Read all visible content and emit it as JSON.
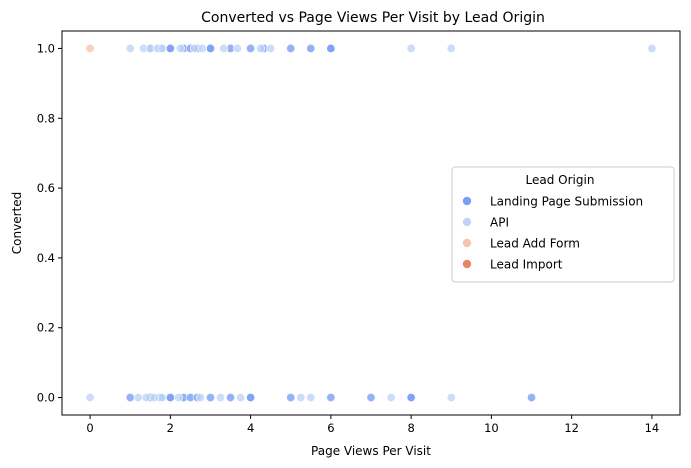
{
  "chart_data": {
    "type": "scatter",
    "title": "Converted vs Page Views Per Visit by Lead Origin",
    "xlabel": "Page Views Per Visit",
    "ylabel": "Converted",
    "xlim": [
      -0.7,
      14.7
    ],
    "ylim": [
      -0.05,
      1.05
    ],
    "xticks": [
      0,
      2,
      4,
      6,
      8,
      10,
      12,
      14
    ],
    "yticks": [
      0.0,
      0.2,
      0.4,
      0.6,
      0.8,
      1.0
    ],
    "xtick_labels": [
      "0",
      "2",
      "4",
      "6",
      "8",
      "10",
      "12",
      "14"
    ],
    "ytick_labels": [
      "0.0",
      "0.2",
      "0.4",
      "0.6",
      "0.8",
      "1.0"
    ],
    "grid": false,
    "legend": {
      "title": "Lead Origin",
      "placement": "center-right"
    },
    "series": [
      {
        "name": "Landing Page Submission",
        "color": "#7b9ff2",
        "points": [
          [
            1.5,
            1
          ],
          [
            1.75,
            1
          ],
          [
            2,
            1
          ],
          [
            2,
            1
          ],
          [
            2.33,
            1
          ],
          [
            2.5,
            1
          ],
          [
            2.67,
            1
          ],
          [
            3,
            1
          ],
          [
            3,
            1
          ],
          [
            3.5,
            1
          ],
          [
            4,
            1
          ],
          [
            4.33,
            1
          ],
          [
            5,
            1
          ],
          [
            5.5,
            1
          ],
          [
            6,
            1
          ],
          [
            6,
            1
          ],
          [
            1,
            0
          ],
          [
            1.5,
            0
          ],
          [
            1.75,
            0
          ],
          [
            2,
            0
          ],
          [
            2,
            0
          ],
          [
            2.33,
            0
          ],
          [
            2.5,
            0
          ],
          [
            2.67,
            0
          ],
          [
            3,
            0
          ],
          [
            3.5,
            0
          ],
          [
            4,
            0
          ],
          [
            4,
            0
          ],
          [
            5,
            0
          ],
          [
            6,
            0
          ],
          [
            7,
            0
          ],
          [
            8,
            0
          ],
          [
            8,
            0
          ],
          [
            11,
            0
          ]
        ]
      },
      {
        "name": "API",
        "color": "#c0d4f5",
        "points": [
          [
            1,
            1
          ],
          [
            1.33,
            1
          ],
          [
            1.5,
            1
          ],
          [
            1.67,
            1
          ],
          [
            1.8,
            1
          ],
          [
            2.25,
            1
          ],
          [
            2.6,
            1
          ],
          [
            2.8,
            1
          ],
          [
            3.33,
            1
          ],
          [
            3.67,
            1
          ],
          [
            4.25,
            1
          ],
          [
            4.5,
            1
          ],
          [
            8,
            1
          ],
          [
            9,
            1
          ],
          [
            14,
            1
          ],
          [
            0,
            0
          ],
          [
            1.2,
            0
          ],
          [
            1.4,
            0
          ],
          [
            1.6,
            0
          ],
          [
            1.8,
            0
          ],
          [
            2.2,
            0
          ],
          [
            2.75,
            0
          ],
          [
            3.25,
            0
          ],
          [
            3.75,
            0
          ],
          [
            5.25,
            0
          ],
          [
            5.5,
            0
          ],
          [
            7.5,
            0
          ],
          [
            9,
            0
          ]
        ]
      },
      {
        "name": "Lead Add Form",
        "color": "#f4c6ad",
        "points": [
          [
            0,
            1
          ]
        ]
      },
      {
        "name": "Lead Import",
        "color": "#ea8468",
        "points": []
      }
    ]
  }
}
